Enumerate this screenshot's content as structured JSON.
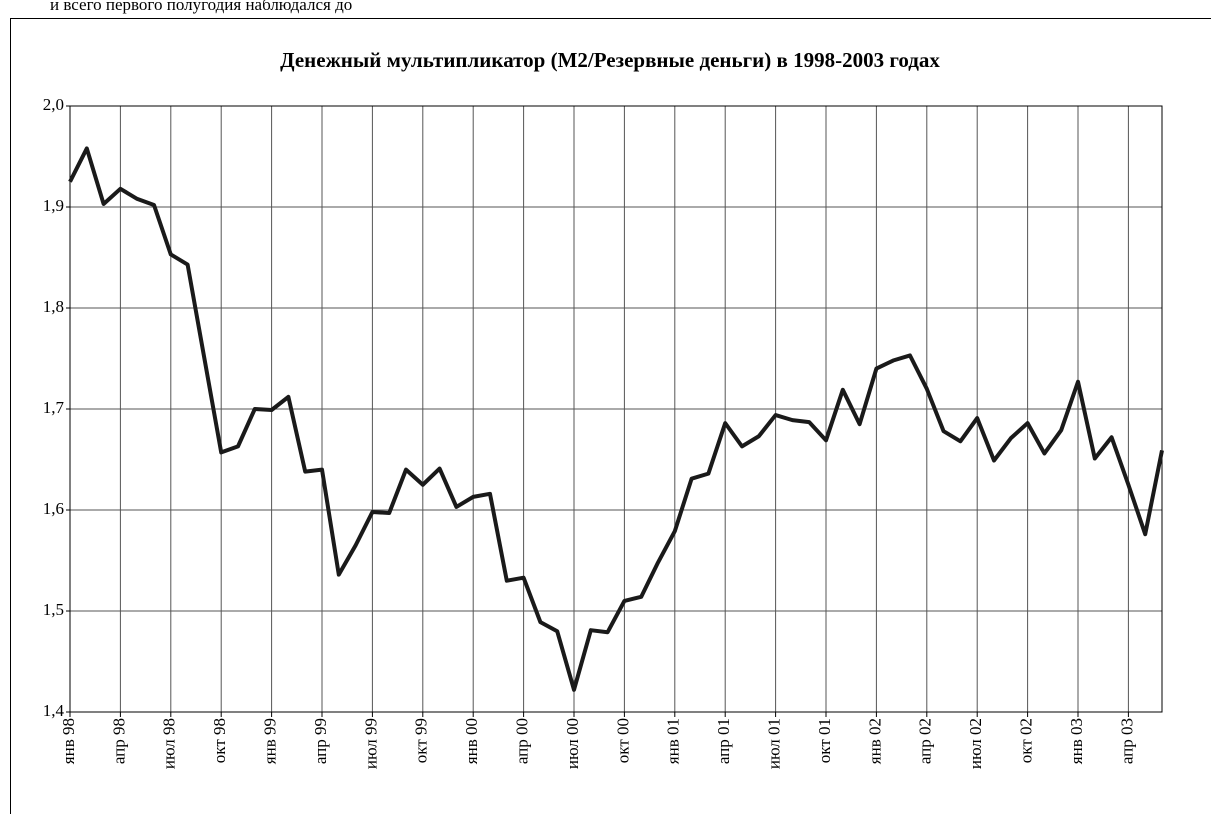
{
  "text_above": "и всего первого полугодия наблюдался до",
  "chart_data": {
    "type": "line",
    "title": "Денежный мультипликатор (М2/Резервные деньги) в 1998-2003 годах",
    "categories": [
      "янв 98",
      null,
      null,
      "апр 98",
      null,
      null,
      "июл 98",
      null,
      null,
      "окт 98",
      null,
      null,
      "янв 99",
      null,
      null,
      "апр 99",
      null,
      null,
      "июл 99",
      null,
      null,
      "окт 99",
      null,
      null,
      "янв 00",
      null,
      null,
      "апр 00",
      null,
      null,
      "июл 00",
      null,
      null,
      "окт 00",
      null,
      null,
      "янв 01",
      null,
      null,
      "апр 01",
      null,
      null,
      "июл 01",
      null,
      null,
      "окт 01",
      null,
      null,
      "янв 02",
      null,
      null,
      "апр 02",
      null,
      null,
      "июл 02",
      null,
      null,
      "окт 02",
      null,
      null,
      "янв 03",
      null,
      null,
      "апр 03",
      null,
      null
    ],
    "series": [
      {
        "name": "М2/Резервные деньги",
        "color": "#1a1a1a",
        "values": [
          1.925,
          1.958,
          1.903,
          1.918,
          1.908,
          1.902,
          1.853,
          1.843,
          1.75,
          1.657,
          1.663,
          1.7,
          1.699,
          1.712,
          1.638,
          1.64,
          1.536,
          1.565,
          1.598,
          1.597,
          1.64,
          1.625,
          1.641,
          1.603,
          1.613,
          1.616,
          1.53,
          1.533,
          1.489,
          1.48,
          1.422,
          1.481,
          1.479,
          1.51,
          1.514,
          1.548,
          1.579,
          1.631,
          1.636,
          1.686,
          1.663,
          1.673,
          1.694,
          1.689,
          1.687,
          1.669,
          1.719,
          1.685,
          1.74,
          1.748,
          1.753,
          1.72,
          1.678,
          1.668,
          1.691,
          1.649,
          1.671,
          1.686,
          1.656,
          1.679,
          1.727,
          1.651,
          1.672,
          1.625,
          1.576,
          1.659
        ]
      }
    ],
    "ylim": [
      1.4,
      2.0
    ],
    "yticks": [
      {
        "value": 1.4,
        "label": "1,4"
      },
      {
        "value": 1.5,
        "label": "1,5"
      },
      {
        "value": 1.6,
        "label": "1,6"
      },
      {
        "value": 1.7,
        "label": "1,7"
      },
      {
        "value": 1.8,
        "label": "1,8"
      },
      {
        "value": 1.9,
        "label": "1,9"
      },
      {
        "value": 2.0,
        "label": "2,0"
      }
    ],
    "grid": true
  }
}
